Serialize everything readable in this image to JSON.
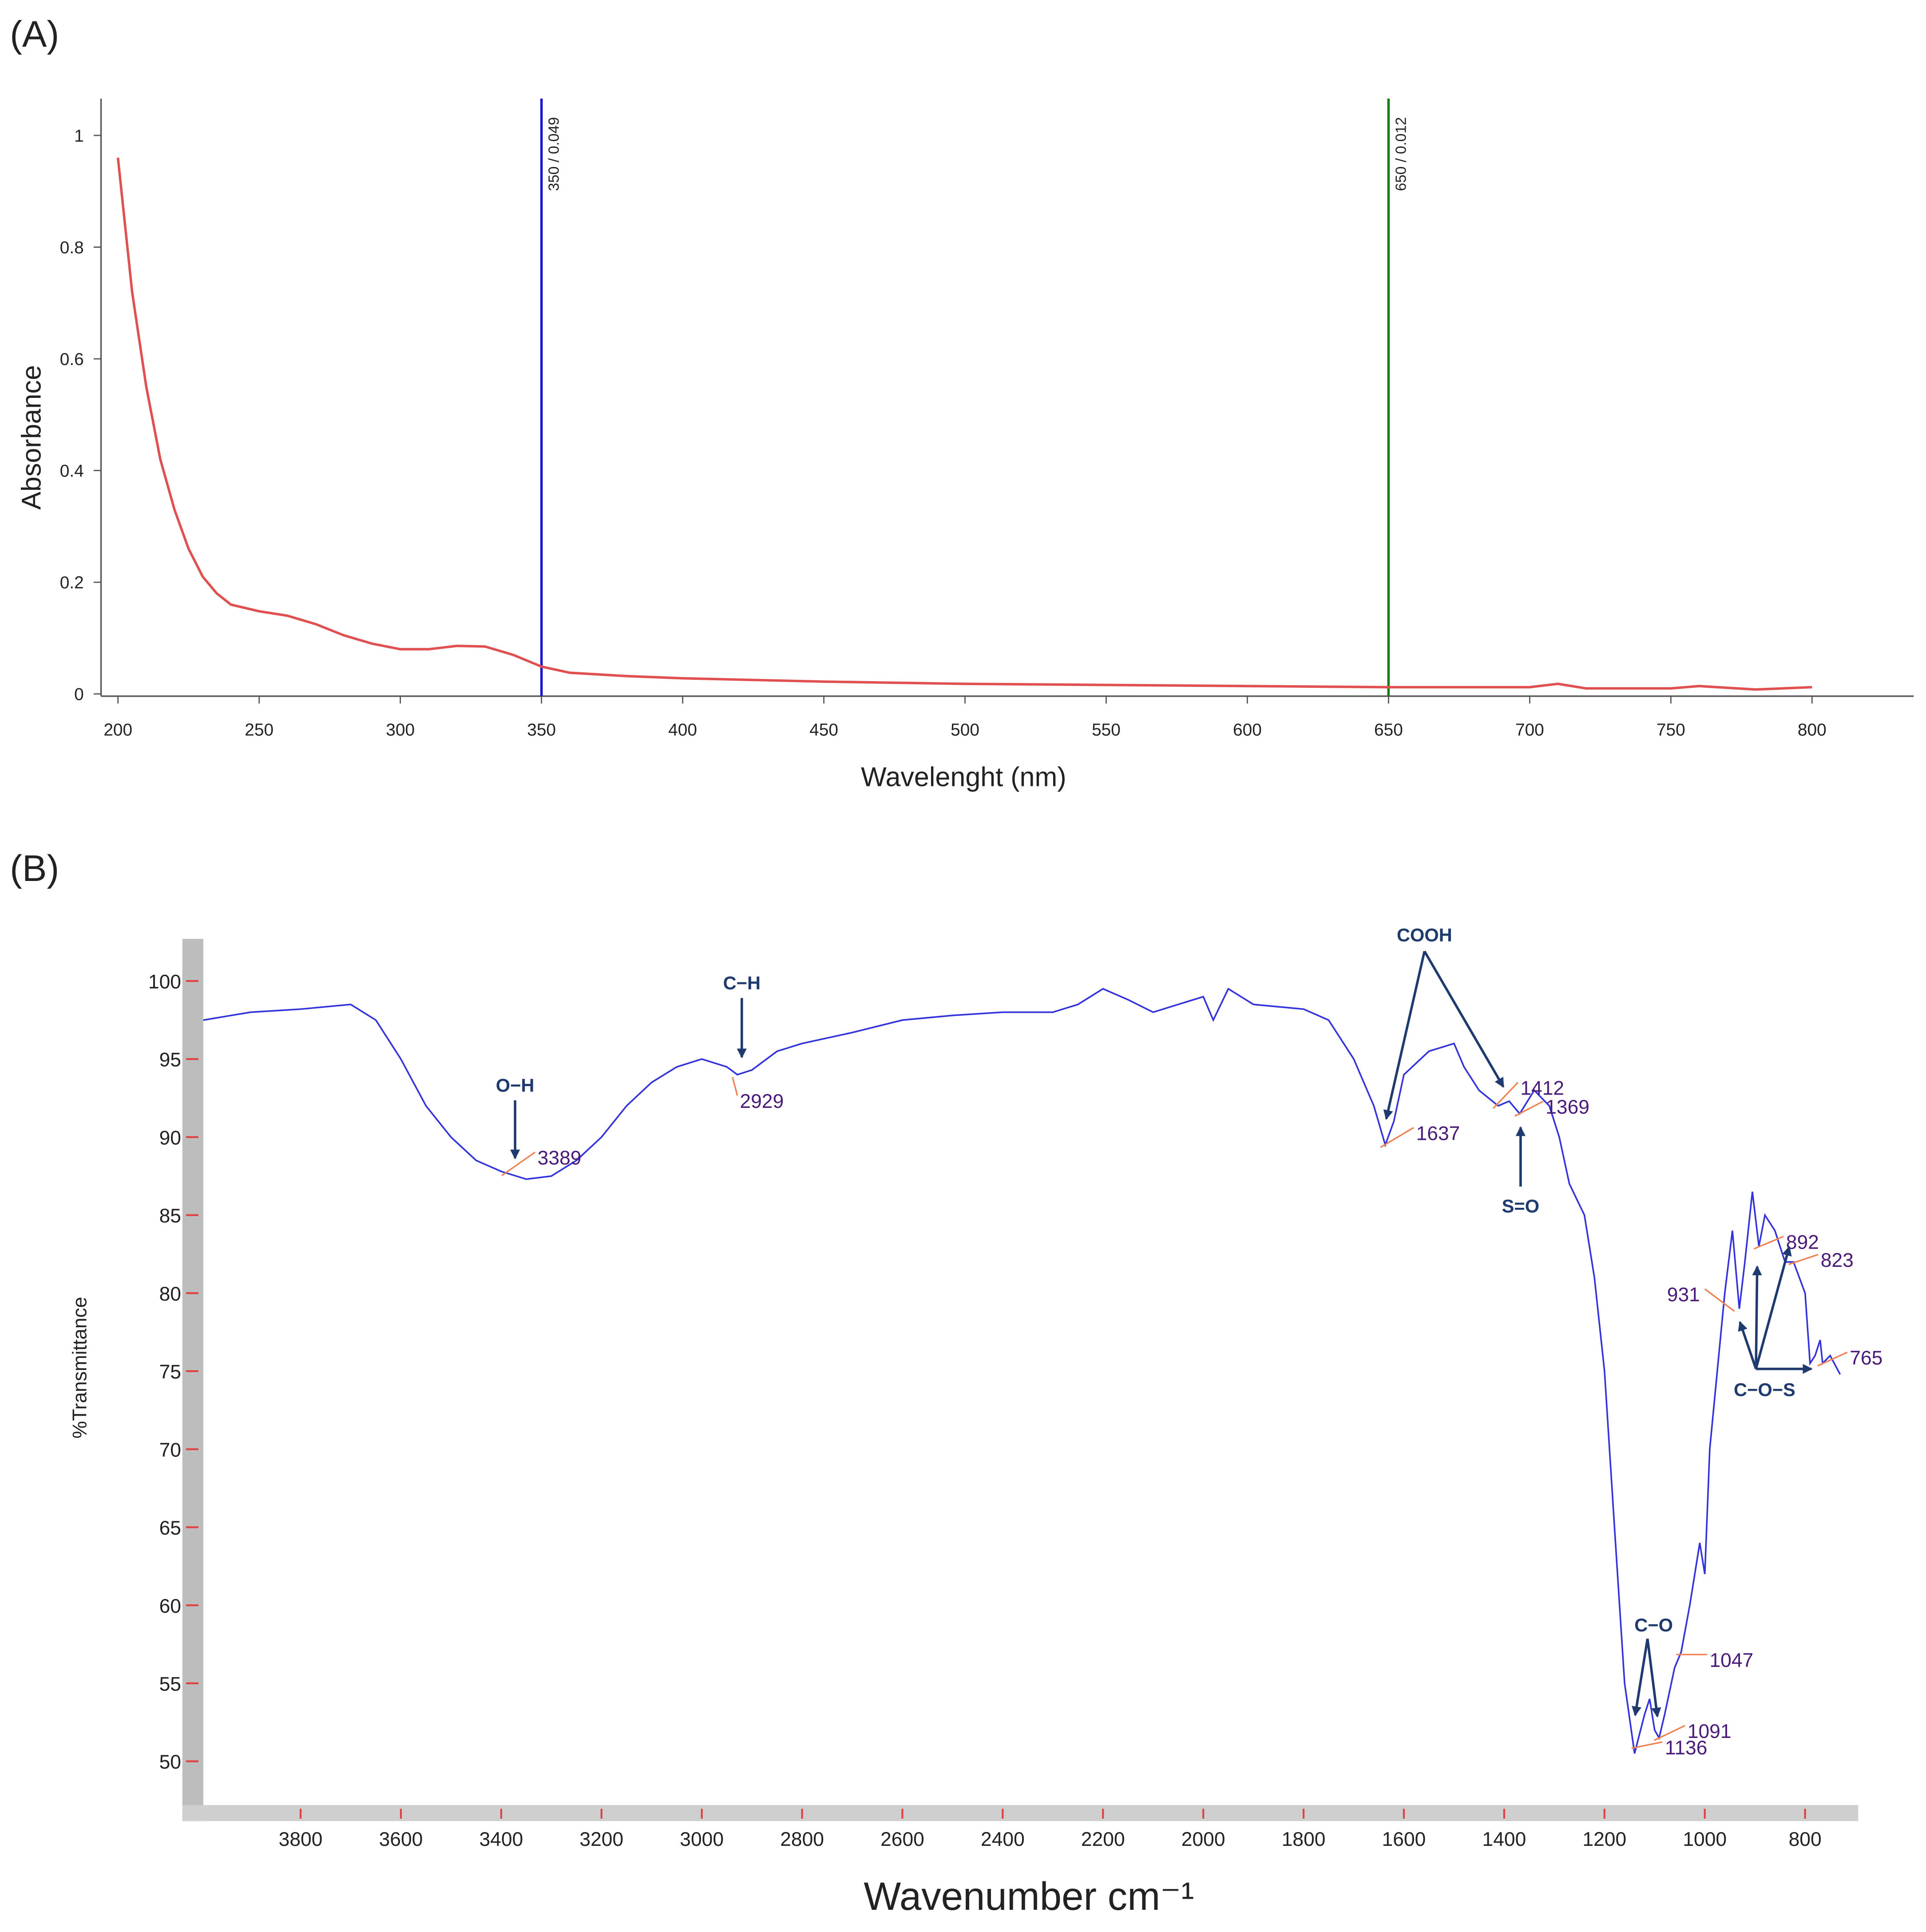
{
  "chart_data": [
    {
      "type": "line",
      "label": "(A)",
      "ylabel": "Absorbance",
      "xlabel": "Wavelenght (nm)",
      "x": [
        200,
        205,
        210,
        215,
        220,
        225,
        230,
        235,
        240,
        250,
        260,
        270,
        280,
        290,
        300,
        310,
        320,
        330,
        340,
        350,
        360,
        380,
        400,
        450,
        500,
        550,
        600,
        650,
        700,
        710,
        720,
        750,
        760,
        780,
        800
      ],
      "values": [
        0.96,
        0.72,
        0.55,
        0.42,
        0.33,
        0.26,
        0.21,
        0.18,
        0.16,
        0.148,
        0.14,
        0.125,
        0.105,
        0.09,
        0.08,
        0.08,
        0.086,
        0.085,
        0.07,
        0.049,
        0.038,
        0.032,
        0.028,
        0.022,
        0.018,
        0.016,
        0.014,
        0.012,
        0.012,
        0.018,
        0.01,
        0.01,
        0.014,
        0.008,
        0.012
      ],
      "color": "#e05050",
      "xlim": [
        194,
        836
      ],
      "ylim": [
        -0.004,
        1.066
      ],
      "xticks": [
        200,
        250,
        300,
        350,
        400,
        450,
        500,
        550,
        600,
        650,
        700,
        750,
        800
      ],
      "yticks": [
        0,
        0.2,
        0.4,
        0.6,
        0.8,
        1
      ],
      "markers": [
        {
          "x": 350,
          "label": "350 / 0.049",
          "color": "#1a1acc"
        },
        {
          "x": 650,
          "label": "650 / 0.012",
          "color": "#1a7a1a"
        }
      ]
    },
    {
      "type": "line",
      "label": "(B)",
      "ylabel": "%Transmittance",
      "xlabel": "Wavenumber cm⁻¹",
      "x": [
        3994,
        3900,
        3800,
        3700,
        3650,
        3600,
        3550,
        3500,
        3450,
        3400,
        3350,
        3300,
        3250,
        3200,
        3150,
        3100,
        3050,
        3000,
        2950,
        2929,
        2900,
        2850,
        2800,
        2700,
        2600,
        2500,
        2400,
        2300,
        2250,
        2200,
        2150,
        2100,
        2050,
        2000,
        1980,
        1950,
        1900,
        1800,
        1750,
        1700,
        1660,
        1637,
        1620,
        1600,
        1550,
        1500,
        1480,
        1450,
        1412,
        1390,
        1369,
        1340,
        1310,
        1290,
        1270,
        1240,
        1220,
        1200,
        1180,
        1160,
        1140,
        1136,
        1120,
        1110,
        1100,
        1091,
        1080,
        1060,
        1047,
        1030,
        1010,
        1000,
        990,
        960,
        945,
        931,
        920,
        905,
        892,
        880,
        860,
        840,
        823,
        800,
        790,
        780,
        770,
        765,
        750,
        730
      ],
      "values": [
        97.5,
        98,
        98.2,
        98.5,
        97.5,
        95,
        92,
        90,
        88.5,
        87.8,
        87.3,
        87.5,
        88.5,
        90,
        92,
        93.5,
        94.5,
        95,
        94.5,
        94,
        94.3,
        95.5,
        96,
        96.7,
        97.5,
        97.8,
        98,
        98,
        98.5,
        99.5,
        98.8,
        98,
        98.5,
        99,
        97.5,
        99.5,
        98.5,
        98.2,
        97.5,
        95,
        92,
        89.5,
        91,
        94,
        95.5,
        96,
        94.5,
        93,
        92,
        92.3,
        91.5,
        93,
        92,
        90,
        87,
        85,
        81,
        75,
        65,
        55,
        50.5,
        51,
        53,
        54,
        52,
        51.5,
        53,
        56,
        57,
        60,
        64,
        62,
        70,
        80,
        84,
        79,
        82,
        86.5,
        83,
        85,
        84,
        82,
        82,
        80,
        75.5,
        76,
        77,
        75.5,
        76,
        74.8
      ],
      "color": "#3333dd",
      "xlim": [
        3994,
        694
      ],
      "ylim": [
        46.8,
        102.7
      ],
      "xticks": [
        3800,
        3600,
        3400,
        3200,
        3000,
        2800,
        2600,
        2400,
        2200,
        2000,
        1800,
        1600,
        1400,
        1200,
        1000,
        800
      ],
      "yticks": [
        50,
        55,
        60,
        65,
        70,
        75,
        80,
        85,
        90,
        95,
        100
      ],
      "peaks": [
        3389,
        2929,
        1637,
        1412,
        1369,
        1136,
        1091,
        1047,
        931,
        892,
        823,
        765
      ],
      "annotations": [
        "O−H",
        "C−H",
        "COOH",
        "S=O",
        "C−O",
        "C−O−S"
      ]
    }
  ]
}
